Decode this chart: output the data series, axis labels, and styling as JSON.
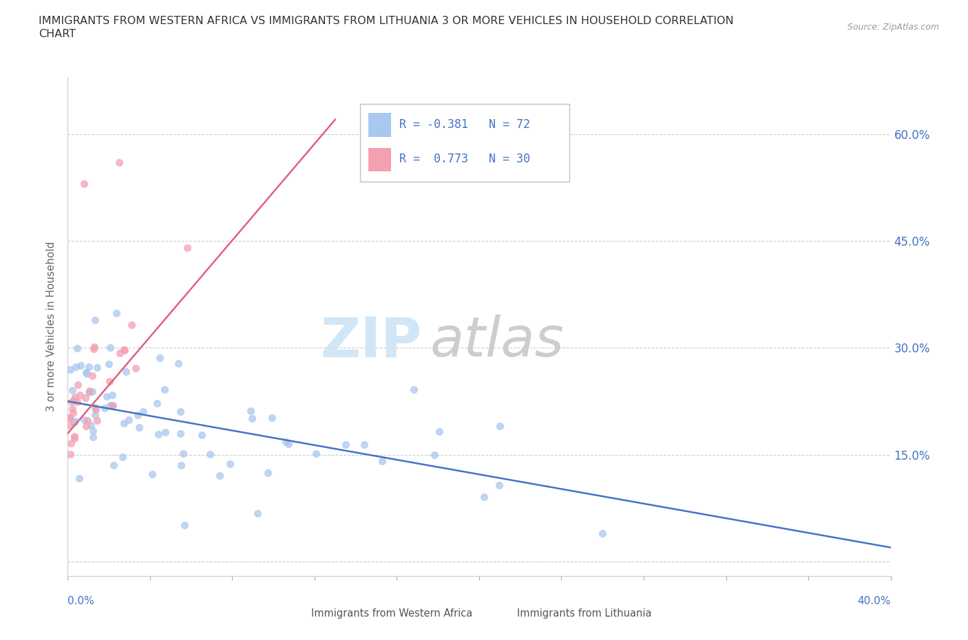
{
  "title_line1": "IMMIGRANTS FROM WESTERN AFRICA VS IMMIGRANTS FROM LITHUANIA 3 OR MORE VEHICLES IN HOUSEHOLD CORRELATION",
  "title_line2": "CHART",
  "source": "Source: ZipAtlas.com",
  "ylabel": "3 or more Vehicles in Household",
  "xlim": [
    0.0,
    0.4
  ],
  "ylim": [
    -0.02,
    0.68
  ],
  "color_western_africa": "#a8c8f0",
  "color_lithuania": "#f4a0b0",
  "line_color_western_africa": "#4472c4",
  "line_color_lithuania": "#e06080",
  "wa_line_x0": 0.0,
  "wa_line_y0": 0.225,
  "wa_line_x1": 0.4,
  "wa_line_y1": 0.02,
  "lt_line_x0": 0.0,
  "lt_line_y0": 0.18,
  "lt_line_x1": 0.13,
  "lt_line_y1": 0.62,
  "ytick_positions": [
    0.0,
    0.15,
    0.3,
    0.45,
    0.6
  ],
  "ytick_labels": [
    "",
    "15.0%",
    "30.0%",
    "45.0%",
    "60.0%"
  ],
  "legend_r1": "R = -0.381   N = 72",
  "legend_r2": "R =  0.773   N = 30",
  "watermark_zip": "ZIP",
  "watermark_atlas": "atlas"
}
